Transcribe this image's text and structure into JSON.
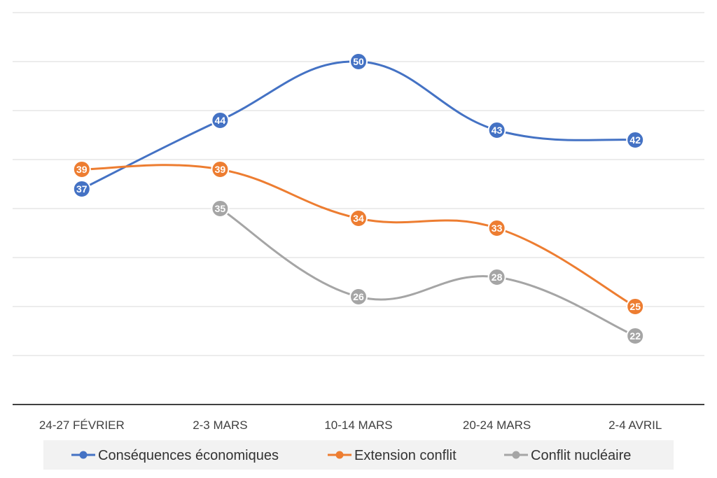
{
  "chart_data": {
    "type": "line",
    "title": "",
    "xlabel": "",
    "ylabel": "",
    "categories": [
      "24-27 FÉVRIER",
      "2-3 MARS",
      "10-14 MARS",
      "20-24 MARS",
      "2-4 AVRIL"
    ],
    "ylim": [
      15,
      55
    ],
    "grid": true,
    "smooth": true,
    "legend_position": "bottom",
    "series": [
      {
        "name": "Conséquences économiques",
        "color": "#4472C4",
        "values": [
          37,
          44,
          50,
          43,
          42
        ]
      },
      {
        "name": "Extension conflit",
        "color": "#ED7D31",
        "values": [
          39,
          39,
          34,
          33,
          25
        ]
      },
      {
        "name": "Conflit nucléaire",
        "color": "#A5A5A5",
        "values": [
          null,
          35,
          26,
          28,
          22
        ]
      }
    ]
  }
}
